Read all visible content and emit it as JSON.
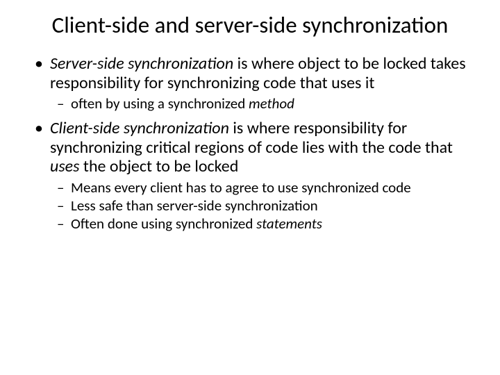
{
  "slide": {
    "title": "Client-side and server-side synchronization",
    "title_fontsize": 33,
    "title_align": "center",
    "background_color": "#ffffff",
    "text_color": "#000000",
    "font_family": "Calibri",
    "bullets": [
      {
        "level": 1,
        "runs": [
          {
            "text": "Server-side synchronization",
            "italic": true
          },
          {
            "text": " is where object to be locked takes responsibility for synchronizing code that uses it",
            "italic": false
          }
        ],
        "fontsize": 24
      },
      {
        "level": 2,
        "runs": [
          {
            "text": "often by using a synchronized ",
            "italic": false
          },
          {
            "text": "method",
            "italic": true
          }
        ],
        "fontsize": 21
      },
      {
        "level": 1,
        "runs": [
          {
            "text": "Client-side synchronization",
            "italic": true
          },
          {
            "text": " is where responsibility for synchronizing critical regions of code lies with the code that ",
            "italic": false
          },
          {
            "text": "uses",
            "italic": true
          },
          {
            "text": " the object to be locked",
            "italic": false
          }
        ],
        "fontsize": 24
      },
      {
        "level": 2,
        "runs": [
          {
            "text": "Means every client has to agree to use synchronized code",
            "italic": false
          }
        ],
        "fontsize": 21
      },
      {
        "level": 2,
        "runs": [
          {
            "text": "Less safe than server-side synchronization",
            "italic": false
          }
        ],
        "fontsize": 21
      },
      {
        "level": 2,
        "runs": [
          {
            "text": "Often done using synchronized ",
            "italic": false
          },
          {
            "text": "statements",
            "italic": true
          }
        ],
        "fontsize": 21
      }
    ],
    "bullet_markers": {
      "level1": "•",
      "level2": "–"
    }
  }
}
